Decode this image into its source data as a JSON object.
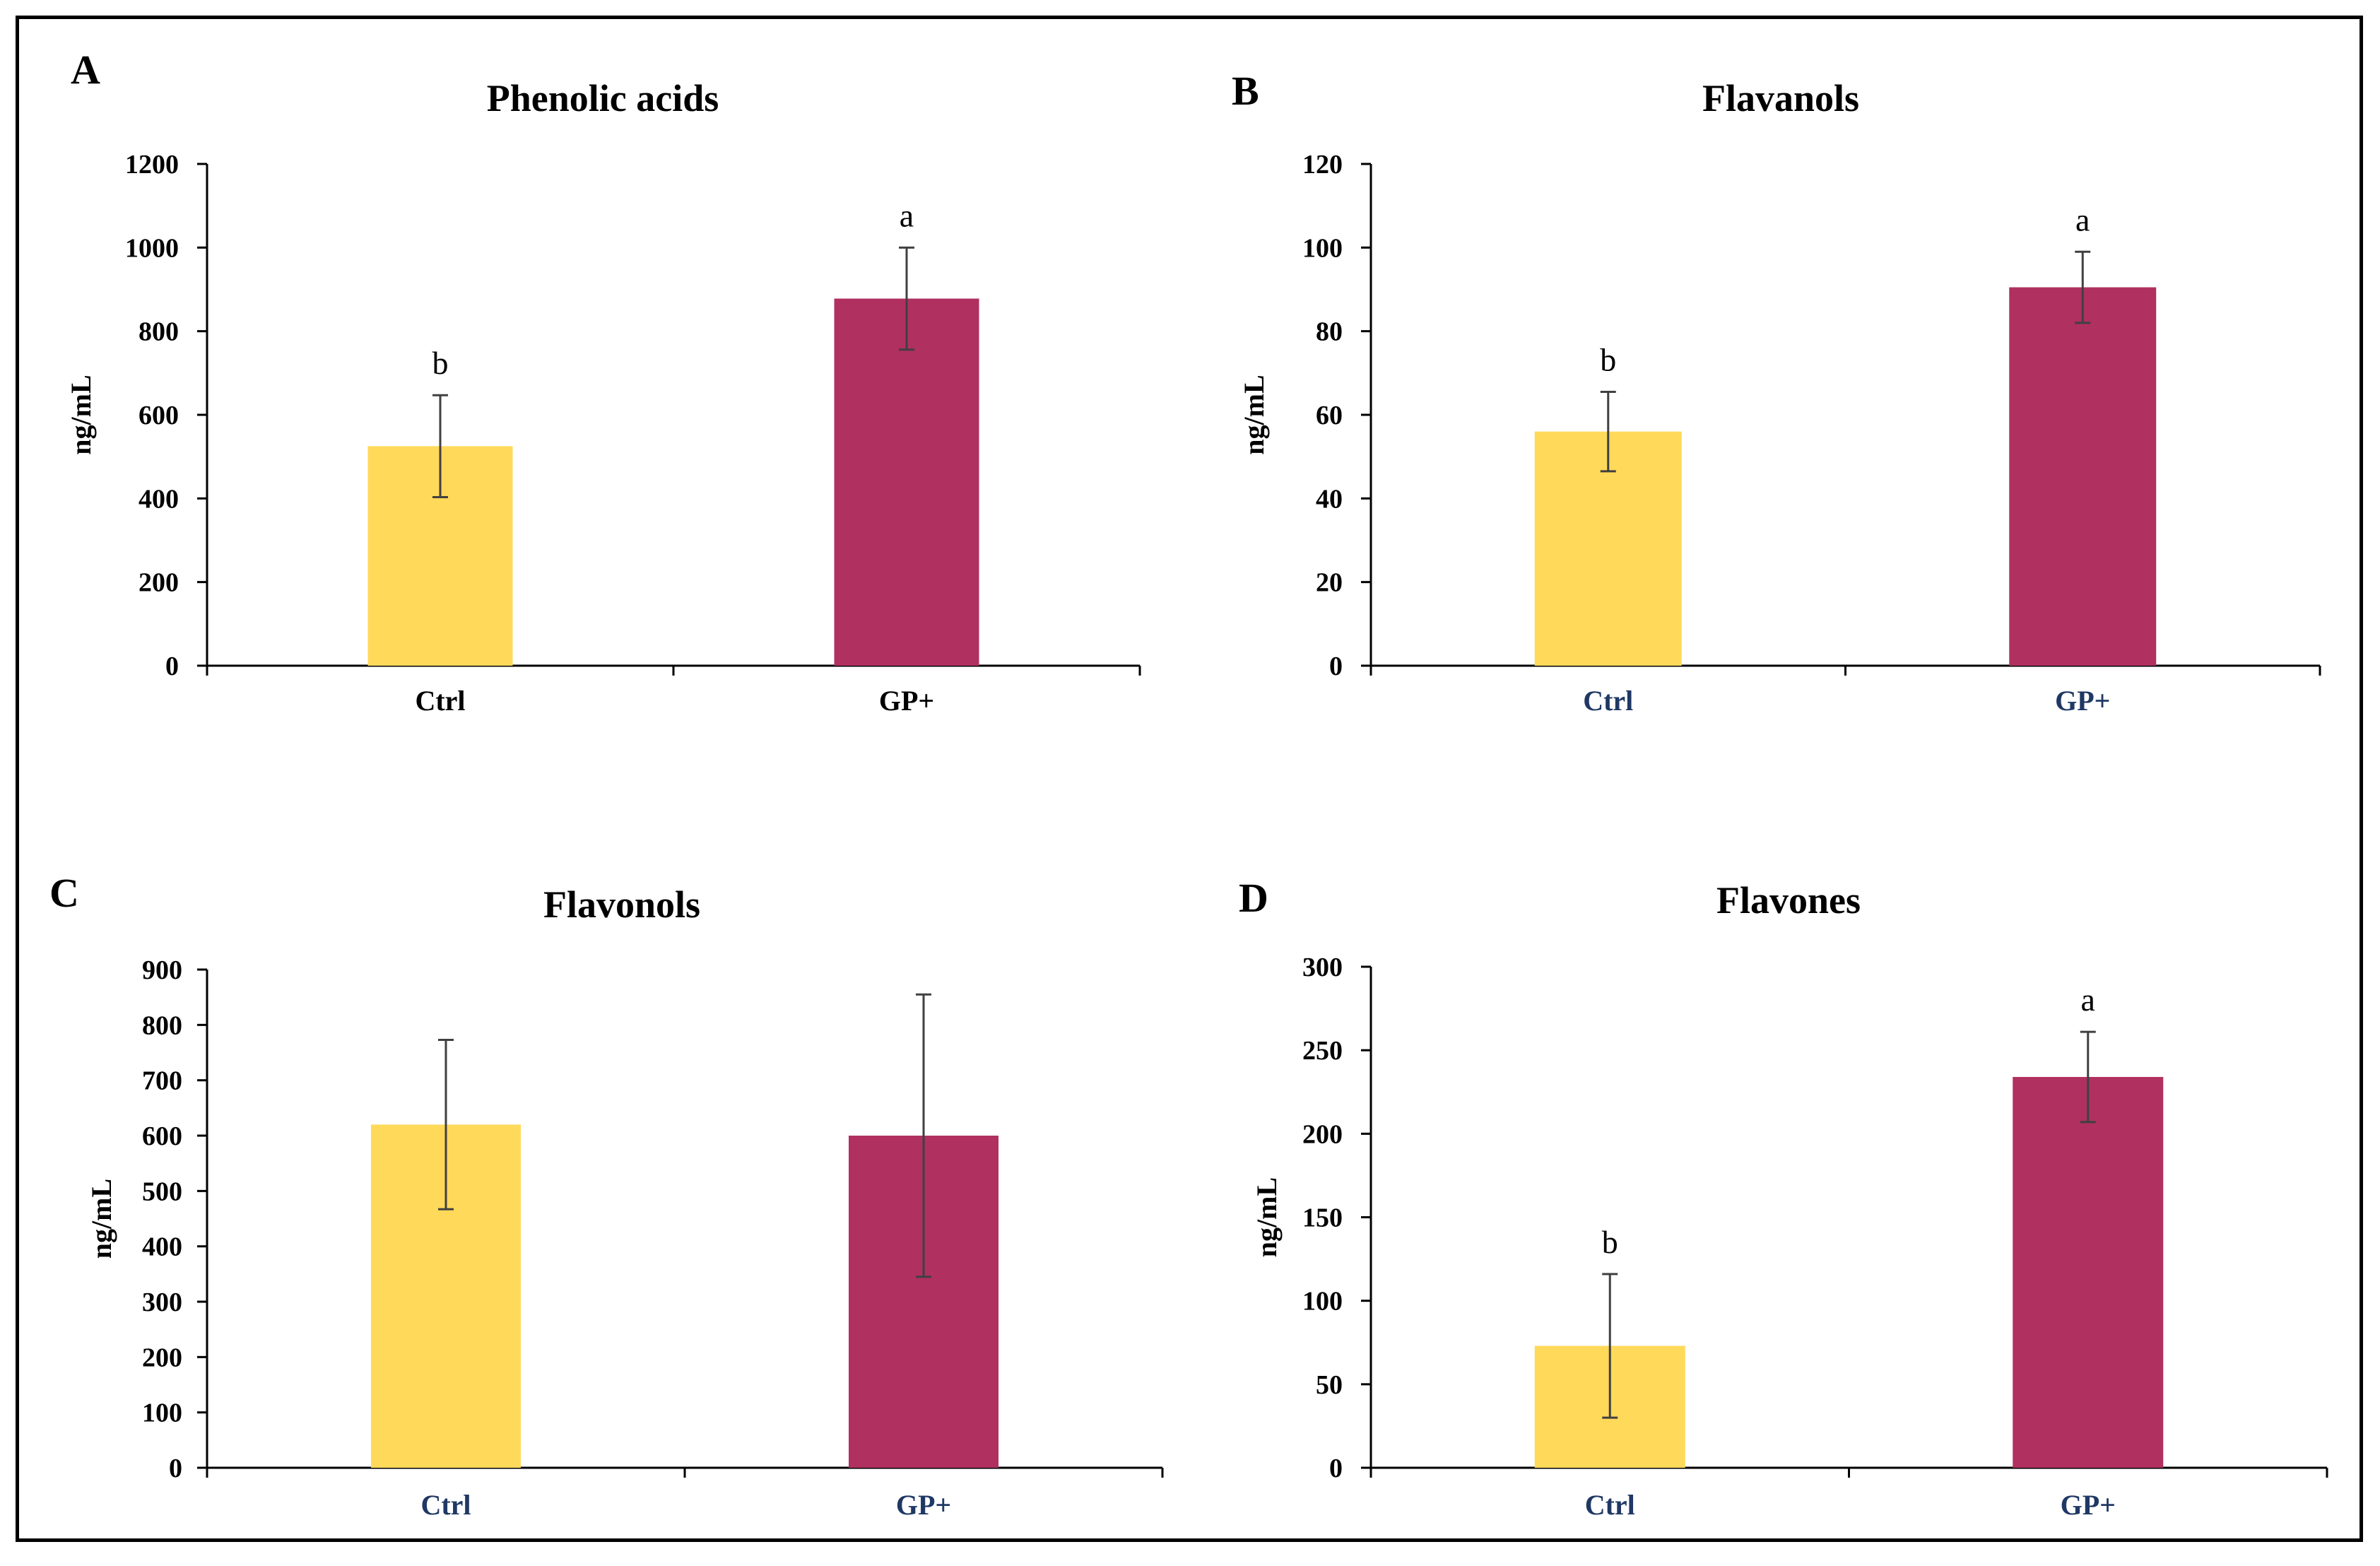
{
  "figure": {
    "colors": {
      "ctrl": "#FFD95A",
      "gp": "#B03060",
      "axis": "#000000",
      "errorbar": "#404040",
      "cat_dark": "#000000",
      "cat_blue": "#1F3864"
    }
  },
  "chart_data": [
    {
      "panel_label": "A",
      "type": "bar",
      "title": "Phenolic acids",
      "ylabel": "ng/mL",
      "xlabel": "",
      "ylim": [
        0,
        1200
      ],
      "yticks": [
        0,
        200,
        400,
        600,
        800,
        1000,
        1200
      ],
      "categories": [
        "Ctrl",
        "GP+"
      ],
      "category_color": "cat_dark",
      "values": [
        525,
        878
      ],
      "errors": [
        122,
        122
      ],
      "letters": [
        "b",
        "a"
      ]
    },
    {
      "panel_label": "B",
      "type": "bar",
      "title": "Flavanols",
      "ylabel": "ng/mL",
      "xlabel": "",
      "ylim": [
        0,
        120
      ],
      "yticks": [
        0,
        20,
        40,
        60,
        80,
        100,
        120
      ],
      "categories": [
        "Ctrl",
        "GP+"
      ],
      "category_color": "cat_blue",
      "values": [
        56,
        90.5
      ],
      "errors": [
        9.5,
        8.5
      ],
      "letters": [
        "b",
        "a"
      ]
    },
    {
      "panel_label": "C",
      "type": "bar",
      "title": "Flavonols",
      "ylabel": "ng/mL",
      "xlabel": "",
      "ylim": [
        0,
        900
      ],
      "yticks": [
        0,
        100,
        200,
        300,
        400,
        500,
        600,
        700,
        800,
        900
      ],
      "categories": [
        "Ctrl",
        "GP+"
      ],
      "category_color": "cat_blue",
      "values": [
        620,
        600
      ],
      "errors": [
        153,
        255
      ],
      "letters": [
        "",
        ""
      ]
    },
    {
      "panel_label": "D",
      "type": "bar",
      "title": "Flavones",
      "ylabel": "ng/mL",
      "xlabel": "",
      "ylim": [
        0,
        300
      ],
      "yticks": [
        0,
        50,
        100,
        150,
        200,
        250,
        300
      ],
      "categories": [
        "Ctrl",
        "GP+"
      ],
      "category_color": "cat_blue",
      "values": [
        73,
        234
      ],
      "errors": [
        43,
        27
      ],
      "letters": [
        "b",
        "a"
      ]
    }
  ]
}
